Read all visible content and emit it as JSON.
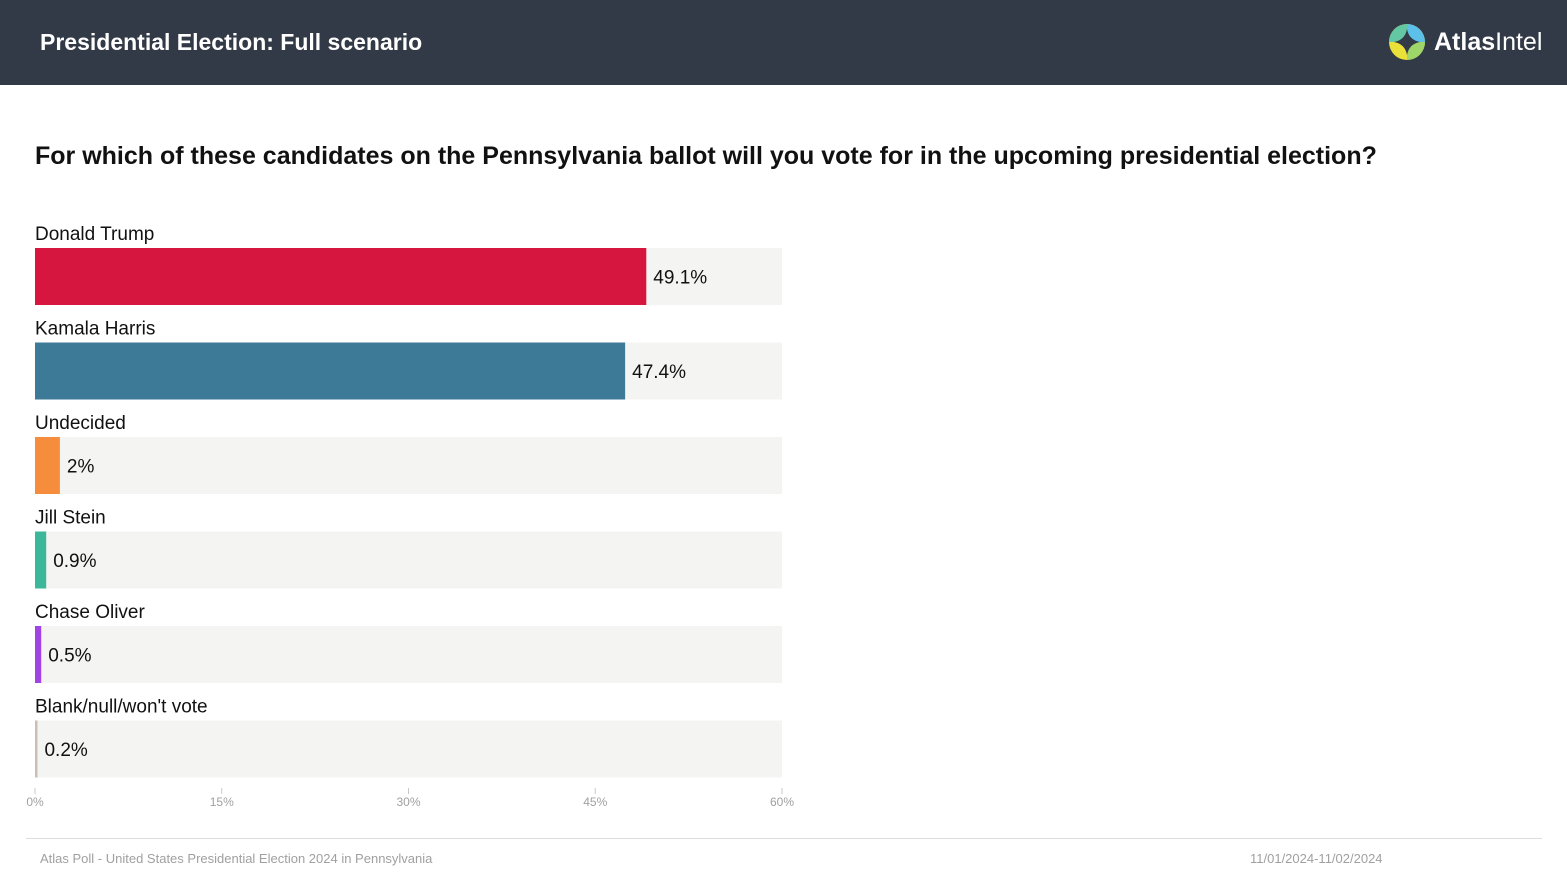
{
  "header": {
    "title": "Presidential Election: Full scenario",
    "logo_text_bold": "Atlas",
    "logo_text_light": "Intel",
    "background": "#333a47"
  },
  "question": "For which of these candidates on the Pennsylvania ballot will you vote for in the upcoming presidential election?",
  "chart_data": {
    "type": "bar",
    "orientation": "horizontal",
    "title": "",
    "xlabel": "",
    "ylabel": "",
    "categories": [
      "Donald Trump",
      "Kamala Harris",
      "Undecided",
      "Jill Stein",
      "Chase Oliver",
      "Blank/null/won't vote"
    ],
    "values": [
      49.1,
      47.4,
      2,
      0.9,
      0.5,
      0.2
    ],
    "value_labels": [
      "49.1%",
      "47.4%",
      "2%",
      "0.9%",
      "0.5%",
      "0.2%"
    ],
    "colors": [
      "#d7163f",
      "#3d7a97",
      "#f58d3d",
      "#3bb89a",
      "#a243e6",
      "#c9bfb7"
    ],
    "track_color": "#f4f4f2",
    "xlim": [
      0,
      60
    ],
    "xticks": [
      0,
      15,
      30,
      45,
      60
    ],
    "xtick_labels": [
      "0%",
      "15%",
      "30%",
      "45%",
      "60%"
    ],
    "grid": false,
    "legend": "none"
  },
  "footer": {
    "source": "Atlas Poll - United States Presidential Election 2024 in Pennsylvania",
    "date_range": "11/01/2024-11/02/2024"
  }
}
